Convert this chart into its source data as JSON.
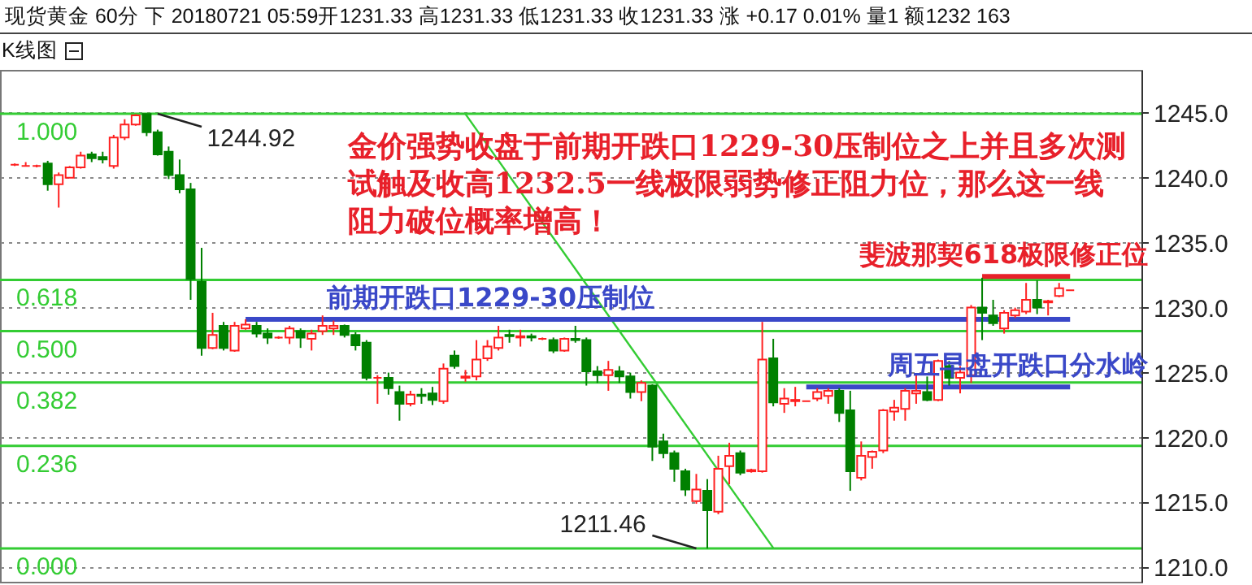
{
  "chart_data": {
    "type": "candlestick",
    "title": "现货黄金 60分 下 20180721 05:59开1231.33 高1231.33 低1231.33 收1231.33 涨 +0.17 0.01% 量1 额1232 163",
    "categories": [
      null,
      null,
      null,
      null,
      null,
      null,
      null,
      null,
      null,
      null,
      null,
      null,
      null,
      null,
      null,
      null,
      null,
      null,
      null,
      null,
      null,
      null,
      null,
      null,
      null,
      null,
      null,
      null,
      null,
      null,
      null,
      null,
      null,
      null,
      null,
      null,
      null,
      null,
      null,
      null,
      null,
      null,
      null,
      null,
      null,
      null,
      null,
      null,
      null,
      null,
      null,
      null,
      null,
      null,
      null,
      null,
      null,
      null,
      null,
      null,
      null,
      null,
      null,
      null,
      null,
      null,
      null,
      null,
      null,
      null,
      null,
      null,
      null,
      null,
      null,
      null,
      null,
      null,
      null,
      null,
      null,
      null,
      null,
      null,
      null,
      null,
      null,
      null,
      null,
      null,
      null,
      null,
      null,
      null,
      null,
      null,
      null
    ],
    "ohlc": [
      [
        1241.0,
        1241.1,
        1240.9,
        1241.0
      ],
      [
        1240.9,
        1241.2,
        1240.9,
        1240.9
      ],
      [
        1240.9,
        1241.0,
        1240.8,
        1240.9
      ],
      [
        1241.1,
        1241.3,
        1239.0,
        1239.5
      ],
      [
        1239.5,
        1240.4,
        1237.7,
        1240.2
      ],
      [
        1240.0,
        1240.9,
        1240.0,
        1240.8
      ],
      [
        1240.8,
        1242.0,
        1240.7,
        1241.7
      ],
      [
        1241.8,
        1242.0,
        1241.2,
        1241.5
      ],
      [
        1241.6,
        1242.0,
        1241.1,
        1241.4
      ],
      [
        1240.9,
        1243.3,
        1240.7,
        1243.1
      ],
      [
        1243.1,
        1244.5,
        1242.9,
        1244.1
      ],
      [
        1244.1,
        1244.9,
        1244.0,
        1244.8
      ],
      [
        1244.9,
        1244.92,
        1243.2,
        1243.5
      ],
      [
        1243.5,
        1243.7,
        1241.7,
        1241.8
      ],
      [
        1242.0,
        1242.4,
        1239.9,
        1240.2
      ],
      [
        1240.2,
        1241.4,
        1238.8,
        1239.1
      ],
      [
        1239.1,
        1239.6,
        1230.6,
        1232.2
      ],
      [
        1232.0,
        1234.6,
        1226.3,
        1226.9
      ],
      [
        1226.9,
        1229.6,
        1226.8,
        1227.9
      ],
      [
        1228.6,
        1228.9,
        1226.7,
        1226.9
      ],
      [
        1226.7,
        1228.9,
        1226.6,
        1228.6
      ],
      [
        1228.4,
        1229.1,
        1228.3,
        1228.7
      ],
      [
        1228.6,
        1228.9,
        1227.7,
        1228.0
      ],
      [
        1228.0,
        1228.4,
        1227.2,
        1227.7
      ],
      [
        1227.7,
        1227.8,
        1227.6,
        1227.7
      ],
      [
        1227.7,
        1228.6,
        1227.2,
        1228.4
      ],
      [
        1228.2,
        1228.4,
        1226.9,
        1227.7
      ],
      [
        1227.6,
        1228.3,
        1226.7,
        1228.0
      ],
      [
        1228.2,
        1229.4,
        1227.9,
        1228.6
      ],
      [
        1228.4,
        1229.0,
        1227.9,
        1228.6
      ],
      [
        1228.6,
        1228.7,
        1227.7,
        1227.9
      ],
      [
        1227.9,
        1228.1,
        1226.7,
        1227.1
      ],
      [
        1227.3,
        1227.5,
        1224.4,
        1224.6
      ],
      [
        1224.6,
        1224.8,
        1222.6,
        1224.6
      ],
      [
        1224.6,
        1225.0,
        1223.3,
        1223.8
      ],
      [
        1223.5,
        1224.0,
        1221.3,
        1222.6
      ],
      [
        1222.6,
        1223.6,
        1222.4,
        1223.3
      ],
      [
        1223.3,
        1223.8,
        1222.6,
        1223.2
      ],
      [
        1223.4,
        1223.9,
        1222.5,
        1222.9
      ],
      [
        1222.8,
        1225.7,
        1222.6,
        1225.3
      ],
      [
        1226.3,
        1226.7,
        1225.3,
        1225.5
      ],
      [
        1224.6,
        1225.2,
        1224.3,
        1224.7
      ],
      [
        1224.7,
        1227.5,
        1224.4,
        1226.0
      ],
      [
        1226.1,
        1227.5,
        1225.9,
        1227.0
      ],
      [
        1226.9,
        1228.6,
        1226.7,
        1227.7
      ],
      [
        1227.9,
        1228.3,
        1227.3,
        1227.8
      ],
      [
        1227.7,
        1228.3,
        1227.0,
        1227.8
      ],
      [
        1227.8,
        1228.0,
        1227.4,
        1227.7
      ],
      [
        1227.6,
        1227.7,
        1227.5,
        1227.6
      ],
      [
        1227.5,
        1227.7,
        1226.5,
        1226.7
      ],
      [
        1226.7,
        1227.7,
        1226.6,
        1227.6
      ],
      [
        1227.6,
        1228.6,
        1227.3,
        1227.5
      ],
      [
        1227.5,
        1227.7,
        1224.0,
        1225.1
      ],
      [
        1225.1,
        1225.5,
        1224.2,
        1224.8
      ],
      [
        1224.8,
        1225.9,
        1223.6,
        1225.2
      ],
      [
        1225.1,
        1225.5,
        1224.2,
        1224.7
      ],
      [
        1224.7,
        1225.0,
        1223.0,
        1223.5
      ],
      [
        1223.5,
        1224.4,
        1222.8,
        1224.2
      ],
      [
        1224.0,
        1224.1,
        1218.2,
        1219.3
      ],
      [
        1219.7,
        1220.3,
        1218.4,
        1218.8
      ],
      [
        1218.8,
        1219.0,
        1216.6,
        1217.6
      ],
      [
        1217.4,
        1217.6,
        1215.5,
        1216.0
      ],
      [
        1215.1,
        1217.2,
        1214.9,
        1216.0
      ],
      [
        1215.9,
        1216.8,
        1211.46,
        1214.4
      ],
      [
        1214.3,
        1218.6,
        1214.1,
        1217.6
      ],
      [
        1217.8,
        1219.6,
        1216.4,
        1218.6
      ],
      [
        1218.8,
        1219.0,
        1217.1,
        1217.3
      ],
      [
        1217.4,
        1217.6,
        1217.3,
        1217.5
      ],
      [
        1217.4,
        1228.9,
        1217.3,
        1226.0
      ],
      [
        1226.1,
        1227.6,
        1222.4,
        1222.7
      ],
      [
        1222.6,
        1223.8,
        1221.9,
        1223.0
      ],
      [
        1222.8,
        1223.9,
        1222.4,
        1222.9
      ],
      [
        1222.8,
        1222.8,
        1222.8,
        1222.8
      ],
      [
        1223.0,
        1223.8,
        1222.8,
        1223.5
      ],
      [
        1223.2,
        1223.8,
        1222.6,
        1223.6
      ],
      [
        1223.6,
        1223.8,
        1221.2,
        1221.9
      ],
      [
        1222.1,
        1223.6,
        1215.9,
        1217.4
      ],
      [
        1216.9,
        1219.7,
        1216.7,
        1218.6
      ],
      [
        1218.5,
        1219.0,
        1217.6,
        1218.9
      ],
      [
        1219.0,
        1222.2,
        1218.8,
        1222.1
      ],
      [
        1222.0,
        1222.9,
        1221.3,
        1222.3
      ],
      [
        1222.2,
        1223.8,
        1221.3,
        1223.6
      ],
      [
        1223.4,
        1224.8,
        1222.6,
        1223.6
      ],
      [
        1223.5,
        1224.7,
        1222.8,
        1222.9
      ],
      [
        1222.9,
        1226.0,
        1222.8,
        1225.9
      ],
      [
        1225.5,
        1225.9,
        1224.0,
        1224.6
      ],
      [
        1224.6,
        1225.5,
        1223.4,
        1225.0
      ],
      [
        1224.8,
        1230.2,
        1224.2,
        1230.0
      ],
      [
        1230.0,
        1232.3,
        1227.5,
        1229.6
      ],
      [
        1229.4,
        1230.6,
        1228.6,
        1228.8
      ],
      [
        1228.4,
        1229.8,
        1228.0,
        1229.6
      ],
      [
        1229.4,
        1230.0,
        1229.2,
        1229.8
      ],
      [
        1229.7,
        1231.9,
        1229.5,
        1230.6
      ],
      [
        1230.6,
        1232.1,
        1229.5,
        1230.0
      ],
      [
        1230.4,
        1230.6,
        1229.4,
        1230.5
      ],
      [
        1230.9,
        1231.9,
        1230.8,
        1231.5
      ],
      [
        1231.33,
        1231.33,
        1231.33,
        1231.33
      ]
    ],
    "series": [
      {
        "type": "line",
        "color": "#33cc33",
        "values": [
          null,
          null,
          null,
          null,
          null,
          null,
          null,
          null,
          null,
          null,
          null,
          null,
          null,
          null,
          null,
          null,
          null,
          null,
          null,
          null,
          null,
          null,
          null,
          null,
          null,
          null,
          null,
          null,
          null,
          null,
          null,
          null,
          null,
          null,
          null,
          null,
          null,
          null,
          null,
          null,
          null,
          1244.9,
          null,
          null,
          null,
          null,
          null,
          null,
          null,
          null,
          null,
          null,
          null,
          null,
          null,
          null,
          null,
          null,
          null,
          null,
          null,
          null,
          null,
          null,
          null,
          null,
          null,
          null,
          null,
          1211.5,
          null,
          null,
          null,
          null,
          null,
          null,
          null,
          null,
          null,
          null,
          null,
          null,
          null,
          null,
          null,
          null,
          null,
          null,
          null,
          null,
          null,
          null,
          null,
          null,
          null,
          null,
          null
        ]
      },
      {
        "type": "line",
        "name": "前期开跌口1229-30压制位",
        "color": "#3a48c8",
        "values": [
          null,
          null,
          null,
          null,
          null,
          null,
          null,
          null,
          null,
          null,
          null,
          null,
          null,
          null,
          null,
          null,
          null,
          null,
          null,
          null,
          null,
          1229.1,
          null,
          null,
          null,
          null,
          null,
          null,
          null,
          null,
          null,
          null,
          null,
          null,
          null,
          null,
          null,
          null,
          null,
          null,
          null,
          null,
          null,
          null,
          null,
          null,
          null,
          null,
          null,
          null,
          null,
          null,
          null,
          null,
          null,
          null,
          null,
          null,
          null,
          null,
          null,
          null,
          null,
          null,
          null,
          null,
          null,
          null,
          null,
          null,
          null,
          null,
          null,
          null,
          null,
          null,
          null,
          null,
          null,
          null,
          null,
          null,
          null,
          null,
          null,
          null,
          null,
          null,
          null,
          null,
          null,
          null,
          null,
          null,
          null,
          null,
          1229.1
        ]
      },
      {
        "type": "line",
        "name": "周五早盘开跌口分水岭",
        "color": "#3a48c8",
        "values": [
          null,
          null,
          null,
          null,
          null,
          null,
          null,
          null,
          null,
          null,
          null,
          null,
          null,
          null,
          null,
          null,
          null,
          null,
          null,
          null,
          null,
          null,
          null,
          null,
          null,
          null,
          null,
          null,
          null,
          null,
          null,
          null,
          null,
          null,
          null,
          null,
          null,
          null,
          null,
          null,
          null,
          null,
          null,
          null,
          null,
          null,
          null,
          null,
          null,
          null,
          null,
          null,
          null,
          null,
          null,
          null,
          null,
          null,
          null,
          null,
          null,
          null,
          null,
          null,
          null,
          null,
          null,
          null,
          null,
          null,
          null,
          null,
          1223.9,
          null,
          null,
          null,
          null,
          null,
          null,
          null,
          null,
          null,
          null,
          null,
          null,
          null,
          null,
          null,
          null,
          null,
          null,
          null,
          null,
          null,
          null,
          null,
          1223.9
        ]
      },
      {
        "type": "line",
        "name": "斐波那契618极限修正位",
        "color": "#e8202a",
        "values": [
          null,
          null,
          null,
          null,
          null,
          null,
          null,
          null,
          null,
          null,
          null,
          null,
          null,
          null,
          null,
          null,
          null,
          null,
          null,
          null,
          null,
          null,
          null,
          null,
          null,
          null,
          null,
          null,
          null,
          null,
          null,
          null,
          null,
          null,
          null,
          null,
          null,
          null,
          null,
          null,
          null,
          null,
          null,
          null,
          null,
          null,
          null,
          null,
          null,
          null,
          null,
          null,
          null,
          null,
          null,
          null,
          null,
          null,
          null,
          null,
          null,
          null,
          null,
          null,
          null,
          null,
          null,
          null,
          null,
          null,
          null,
          null,
          null,
          null,
          null,
          null,
          null,
          null,
          null,
          null,
          null,
          null,
          null,
          null,
          null,
          null,
          null,
          null,
          1232.4,
          null,
          null,
          null,
          null,
          null,
          null,
          null,
          1232.4
        ]
      }
    ],
    "ref_lines": [
      {
        "axis": "y2",
        "value": 1,
        "label": "1.000",
        "color": "#33cc33"
      },
      {
        "axis": "y2",
        "value": 0.618,
        "label": "0.618",
        "color": "#33cc33"
      },
      {
        "axis": "y2",
        "value": 0.5,
        "label": "0.500",
        "color": "#33cc33"
      },
      {
        "axis": "y2",
        "value": 0.382,
        "label": "0.382",
        "color": "#33cc33"
      },
      {
        "axis": "y2",
        "value": 0.236,
        "label": "0.236",
        "color": "#33cc33"
      },
      {
        "axis": "y2",
        "value": 0,
        "label": "0.000",
        "color": "#33cc33"
      }
    ],
    "y2lim": [
      -0.0765,
      1.101
    ],
    "annotations": [
      "K线图",
      "金价强势收盘于前期开跌口1229-30压制位之上并且多次测试触及收高1232.5一线极限弱势修正阻力位，那么这一线阻力破位概率增高！",
      {
        "text": "1244.92",
        "y": 1244.92
      },
      {
        "text": "1211.46",
        "y": 1211.46
      }
    ],
    "ylim": [
      1208.9,
      1248.3
    ],
    "yticks": [
      {
        "value": 1210,
        "label": "1210.0"
      },
      {
        "value": 1215,
        "label": "1215.0"
      },
      {
        "value": 1220,
        "label": "1220.0"
      },
      {
        "value": 1225,
        "label": "1225.0"
      },
      {
        "value": 1230,
        "label": "1230.0"
      },
      {
        "value": 1235,
        "label": "1235.0"
      },
      {
        "value": 1240,
        "label": "1240.0"
      },
      {
        "value": 1245,
        "label": "1245.0"
      }
    ],
    "grid": "y"
  }
}
